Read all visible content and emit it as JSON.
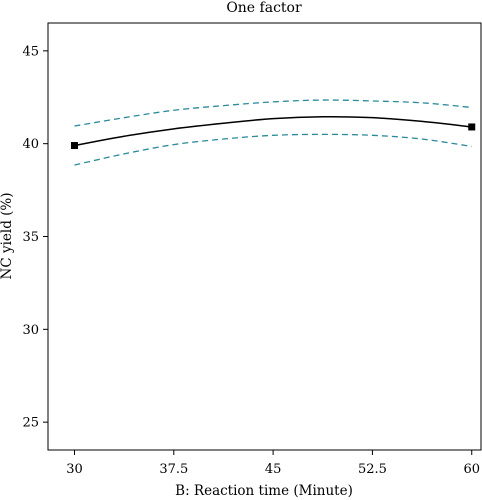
{
  "chart_data": {
    "type": "line",
    "title": "One factor",
    "xlabel": "B: Reaction time (Minute)",
    "ylabel": "NC yield (%)",
    "xlim": [
      28,
      60.7
    ],
    "ylim": [
      23.5,
      46.5
    ],
    "xticks": [
      30,
      37.5,
      45,
      52.5,
      60
    ],
    "xtick_labels": [
      "30",
      "37.5",
      "45",
      "52.5",
      "60"
    ],
    "yticks": [
      25,
      30,
      35,
      40,
      45
    ],
    "ytick_labels": [
      "25",
      "30",
      "35",
      "40",
      "45"
    ],
    "grid": false,
    "series": [
      {
        "role": "fit",
        "style": "solid",
        "color": "#000000",
        "x": [
          30,
          33.75,
          37.5,
          41.25,
          45,
          48.75,
          52.5,
          56.25,
          60
        ],
        "y": [
          39.9,
          40.4,
          40.8,
          41.1,
          41.35,
          41.45,
          41.4,
          41.2,
          40.9
        ]
      },
      {
        "role": "upper-confidence",
        "style": "dashed",
        "color": "#2a8b9a",
        "x": [
          30,
          33.75,
          37.5,
          41.25,
          45,
          48.75,
          52.5,
          56.25,
          60
        ],
        "y": [
          40.95,
          41.4,
          41.8,
          42.05,
          42.25,
          42.35,
          42.3,
          42.2,
          41.95
        ]
      },
      {
        "role": "lower-confidence",
        "style": "dashed",
        "color": "#2a8b9a",
        "x": [
          30,
          33.75,
          37.5,
          41.25,
          45,
          48.75,
          52.5,
          56.25,
          60
        ],
        "y": [
          38.85,
          39.45,
          39.95,
          40.25,
          40.45,
          40.5,
          40.45,
          40.25,
          39.85
        ]
      }
    ],
    "points": {
      "marker": "square",
      "color": "#000000",
      "x": [
        30,
        60
      ],
      "y": [
        39.9,
        40.9
      ]
    }
  }
}
